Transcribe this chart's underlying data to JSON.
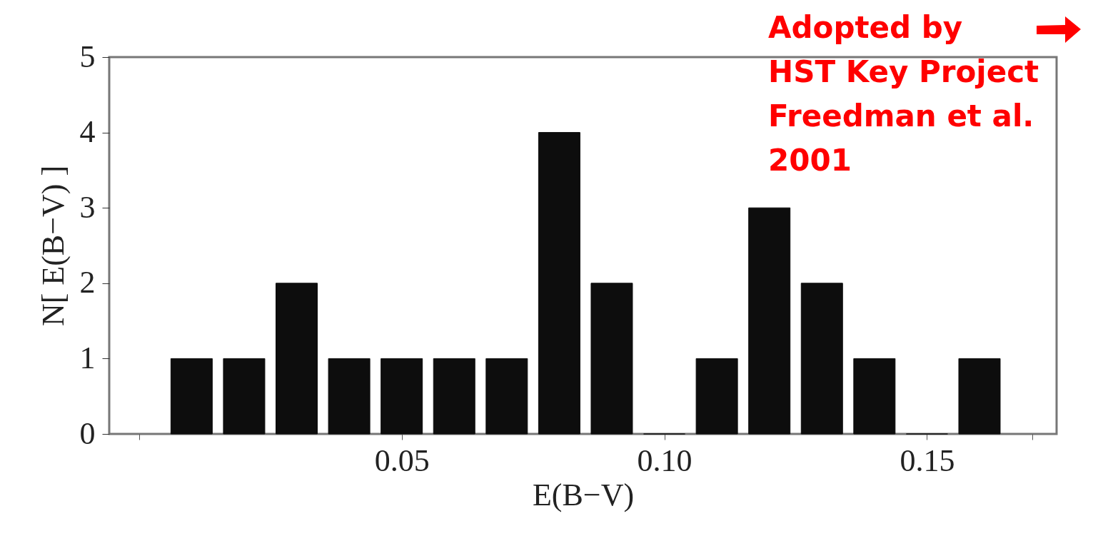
{
  "chart_data": {
    "type": "bar",
    "xlabel": "E(B−V)",
    "ylabel": "N[ E(B−V) ]",
    "x": [
      0.01,
      0.02,
      0.03,
      0.04,
      0.05,
      0.06,
      0.07,
      0.08,
      0.09,
      0.1,
      0.11,
      0.12,
      0.13,
      0.14,
      0.15,
      0.16
    ],
    "values": [
      1,
      1,
      2,
      1,
      1,
      1,
      1,
      4,
      2,
      0,
      1,
      3,
      2,
      1,
      0,
      1
    ],
    "color": "#0d0d0d",
    "xlim": [
      -0.005,
      0.174
    ],
    "xticks": [
      {
        "value": 0,
        "label": null
      },
      {
        "value": 0.05,
        "label": "0.05"
      },
      {
        "value": 0.1,
        "label": "0.10"
      },
      {
        "value": 0.15,
        "label": "0.15"
      },
      {
        "value": 0.17,
        "label": null
      }
    ],
    "ylim": [
      0,
      5
    ],
    "yticks": [
      0,
      1,
      2,
      3,
      4,
      5
    ],
    "grid": false,
    "annotations": [
      "Adopted by\nHST Key Project\nFreedman et al.\n2001"
    ]
  }
}
